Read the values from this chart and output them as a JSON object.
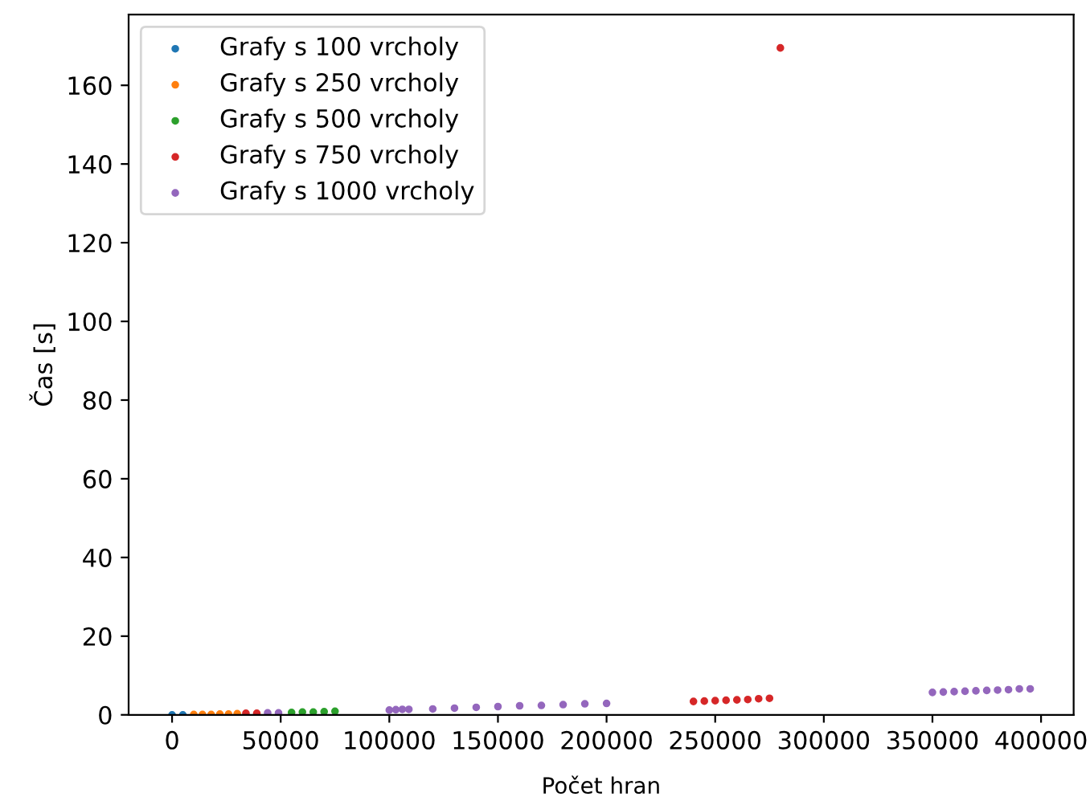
{
  "chart_data": {
    "type": "scatter",
    "xlabel": "Počet hran",
    "ylabel": "Čas [s]",
    "xlim": [
      -20000,
      415000
    ],
    "ylim": [
      0,
      178
    ],
    "xticks": [
      0,
      50000,
      100000,
      150000,
      200000,
      250000,
      300000,
      350000,
      400000
    ],
    "yticks": [
      0,
      20,
      40,
      60,
      80,
      100,
      120,
      140,
      160
    ],
    "grid": false,
    "legend": "top left",
    "marker": "circle",
    "series": [
      {
        "name": "Grafy s 100 vrcholy",
        "color": "#1f77b4",
        "x": [
          0,
          4950
        ],
        "values": [
          0,
          0
        ]
      },
      {
        "name": "Grafy s 250 vrcholy",
        "color": "#ff7f0e",
        "x": [
          10000,
          14000,
          18000,
          22000,
          26000,
          30000
        ],
        "values": [
          0.1,
          0.1,
          0.1,
          0.2,
          0.2,
          0.3
        ]
      },
      {
        "name": "Grafy s 500 vrcholy",
        "color": "#2ca02c",
        "x": [
          55000,
          60000,
          65000,
          70000,
          75000
        ],
        "values": [
          0.6,
          0.7,
          0.7,
          0.8,
          0.9
        ]
      },
      {
        "name": "Grafy s 750 vrcholy",
        "color": "#d62728",
        "x": [
          34000,
          39000,
          240000,
          245000,
          250000,
          255000,
          260000,
          265000,
          270000,
          275000,
          280000
        ],
        "values": [
          0.4,
          0.4,
          3.4,
          3.5,
          3.6,
          3.7,
          3.8,
          3.9,
          4.1,
          4.2,
          169.5
        ]
      },
      {
        "name": "Grafy s 1000 vrcholy",
        "color": "#9467bd",
        "x": [
          44000,
          49000,
          100000,
          103000,
          106000,
          109000,
          120000,
          130000,
          140000,
          150000,
          160000,
          170000,
          180000,
          190000,
          200000
        ],
        "values": [
          0.5,
          0.5,
          1.2,
          1.3,
          1.4,
          1.4,
          1.5,
          1.7,
          1.9,
          2.1,
          2.3,
          2.4,
          2.6,
          2.8,
          2.9
        ]
      },
      {
        "color": "#9467bd",
        "x": [
          350000,
          355000,
          360000,
          365000,
          370000,
          375000,
          380000,
          385000,
          390000,
          395000
        ],
        "values": [
          5.7,
          5.8,
          5.9,
          6.0,
          6.1,
          6.2,
          6.3,
          6.4,
          6.6,
          6.6
        ]
      }
    ]
  }
}
